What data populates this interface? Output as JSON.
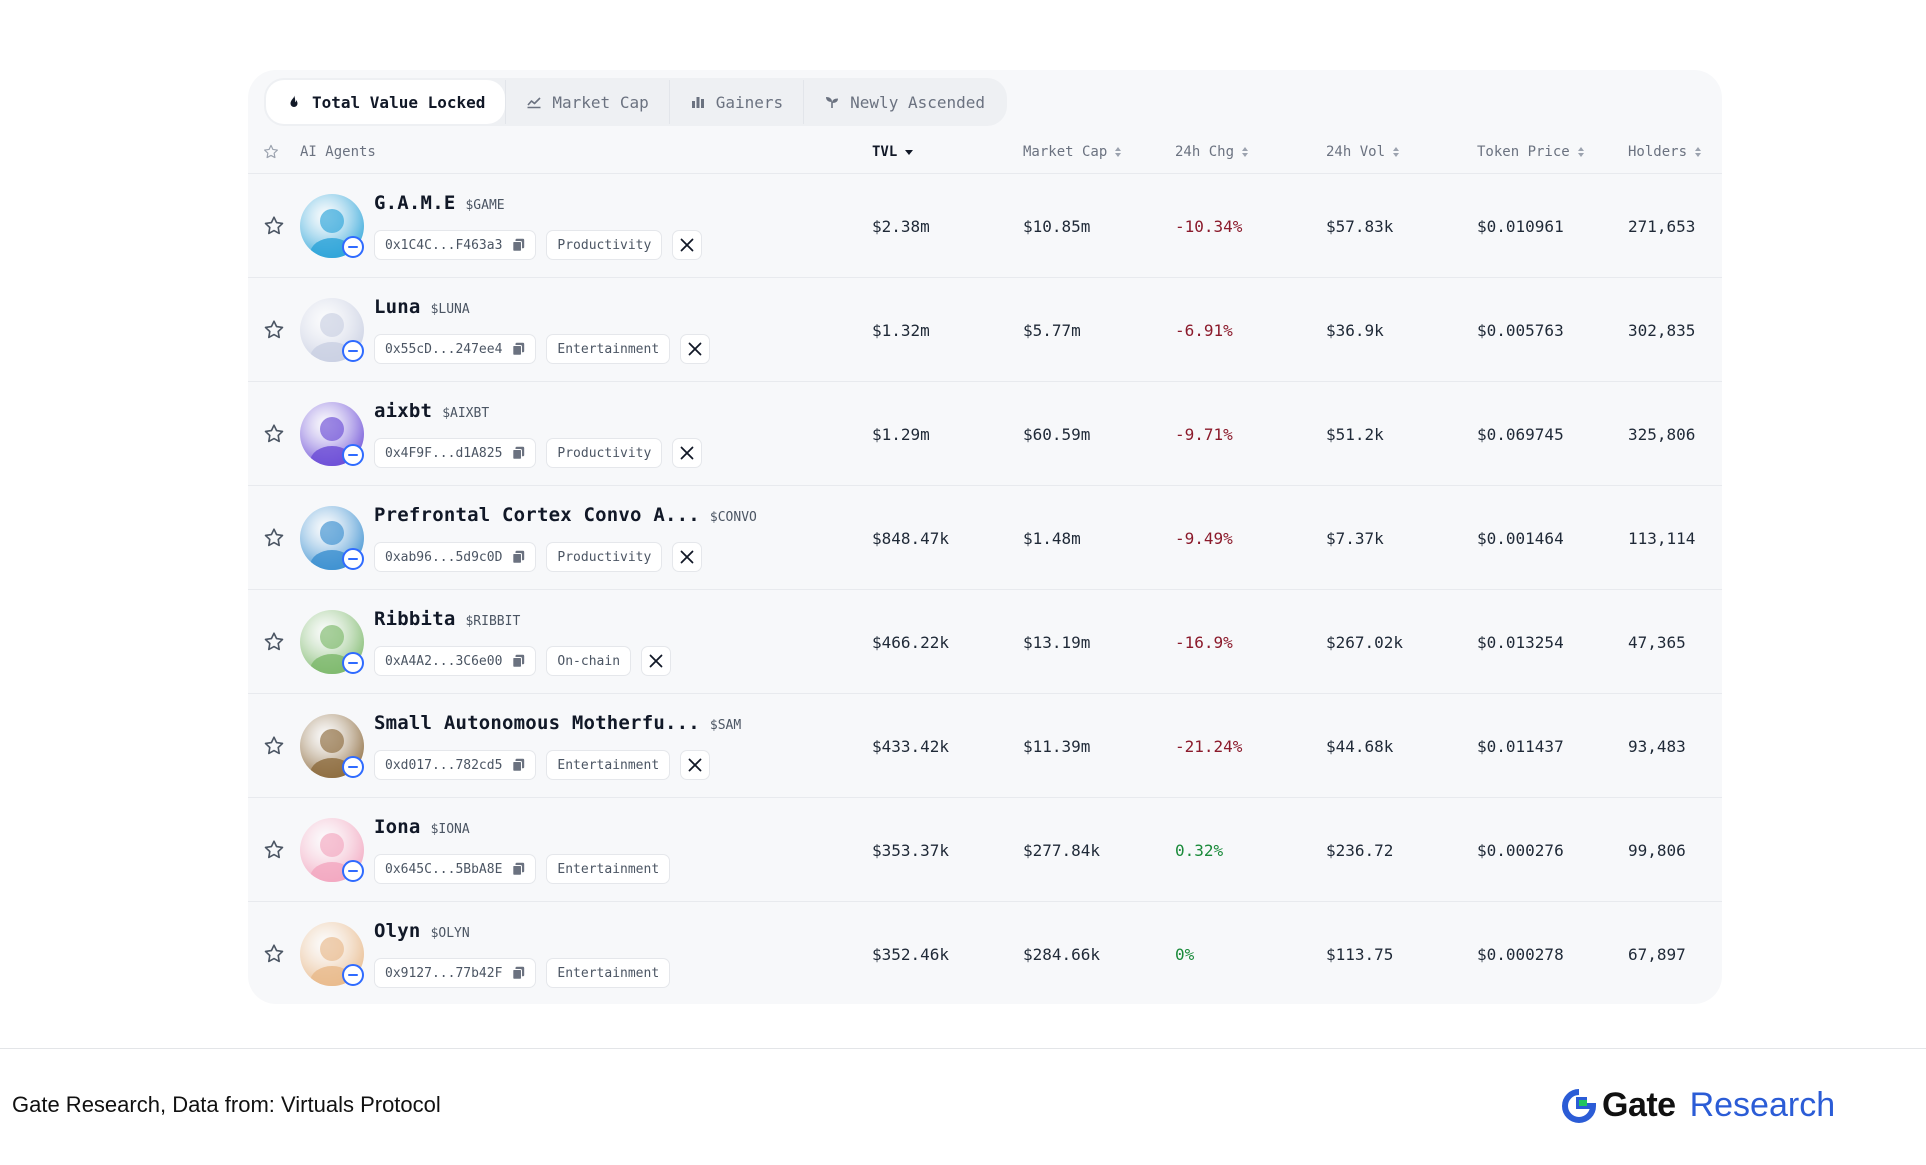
{
  "tabs": [
    {
      "label": "Total Value Locked",
      "icon": "flame-icon",
      "active": true
    },
    {
      "label": "Market Cap",
      "icon": "area-chart-icon",
      "active": false
    },
    {
      "label": "Gainers",
      "icon": "bar-chart-icon",
      "active": false
    },
    {
      "label": "Newly Ascended",
      "icon": "sprout-icon",
      "active": false
    }
  ],
  "headers": {
    "agents": "AI Agents",
    "tvl": "TVL",
    "market_cap": "Market Cap",
    "change_24h": "24h Chg",
    "vol_24h": "24h Vol",
    "token_price": "Token Price",
    "holders": "Holders"
  },
  "rows": [
    {
      "name": "G.A.M.E",
      "ticker": "$GAME",
      "address": "0x1C4C...F463a3",
      "category": "Productivity",
      "has_x": true,
      "tvl": "$2.38m",
      "market_cap": "$10.85m",
      "change": "-10.34%",
      "trend": "neg",
      "volume": "$57.83k",
      "price": "$0.010961",
      "holders": "271,653",
      "avatar_color": "#2aa3d8"
    },
    {
      "name": "Luna",
      "ticker": "$LUNA",
      "address": "0x55cD...247ee4",
      "category": "Entertainment",
      "has_x": true,
      "tvl": "$1.32m",
      "market_cap": "$5.77m",
      "change": "-6.91%",
      "trend": "neg",
      "volume": "$36.9k",
      "price": "$0.005763",
      "holders": "302,835",
      "avatar_color": "#c9cfe2"
    },
    {
      "name": "aixbt",
      "ticker": "$AIXBT",
      "address": "0x4F9F...d1A825",
      "category": "Productivity",
      "has_x": true,
      "tvl": "$1.29m",
      "market_cap": "$60.59m",
      "change": "-9.71%",
      "trend": "neg",
      "volume": "$51.2k",
      "price": "$0.069745",
      "holders": "325,806",
      "avatar_color": "#6a4bd6"
    },
    {
      "name": "Prefrontal Cortex Convo A...",
      "ticker": "$CONVO",
      "address": "0xab96...5d9c0D",
      "category": "Productivity",
      "has_x": true,
      "tvl": "$848.47k",
      "market_cap": "$1.48m",
      "change": "-9.49%",
      "trend": "neg",
      "volume": "$7.37k",
      "price": "$0.001464",
      "holders": "113,114",
      "avatar_color": "#3a8fd0"
    },
    {
      "name": "Ribbita",
      "ticker": "$RIBBIT",
      "address": "0xA4A2...3C6e00",
      "category": "On-chain",
      "has_x": true,
      "tvl": "$466.22k",
      "market_cap": "$13.19m",
      "change": "-16.9%",
      "trend": "neg",
      "volume": "$267.02k",
      "price": "$0.013254",
      "holders": "47,365",
      "avatar_color": "#7cb86a"
    },
    {
      "name": "Small Autonomous Motherfu...",
      "ticker": "$SAM",
      "address": "0xd017...782cd5",
      "category": "Entertainment",
      "has_x": true,
      "tvl": "$433.42k",
      "market_cap": "$11.39m",
      "change": "-21.24%",
      "trend": "neg",
      "volume": "$44.68k",
      "price": "$0.011437",
      "holders": "93,483",
      "avatar_color": "#8c6a3c"
    },
    {
      "name": "Iona",
      "ticker": "$IONA",
      "address": "0x645C...5BbA8E",
      "category": "Entertainment",
      "has_x": false,
      "tvl": "$353.37k",
      "market_cap": "$277.84k",
      "change": "0.32%",
      "trend": "pos",
      "volume": "$236.72",
      "price": "$0.000276",
      "holders": "99,806",
      "avatar_color": "#f2a6bf"
    },
    {
      "name": "Olyn",
      "ticker": "$OLYN",
      "address": "0x9127...77b42F",
      "category": "Entertainment",
      "has_x": false,
      "tvl": "$352.46k",
      "market_cap": "$284.66k",
      "change": "0%",
      "trend": "pos",
      "volume": "$113.75",
      "price": "$0.000278",
      "holders": "67,897",
      "avatar_color": "#e8b98a"
    }
  ],
  "footer": {
    "source": "Gate Research, Data from: Virtuals Protocol",
    "logo_gate": "Gate",
    "logo_research": "Research"
  },
  "colors": {
    "negative": "#8b1a2b",
    "positive": "#1a8a3a",
    "brand_blue": "#2b5cd6",
    "badge_blue": "#2f6bff"
  }
}
